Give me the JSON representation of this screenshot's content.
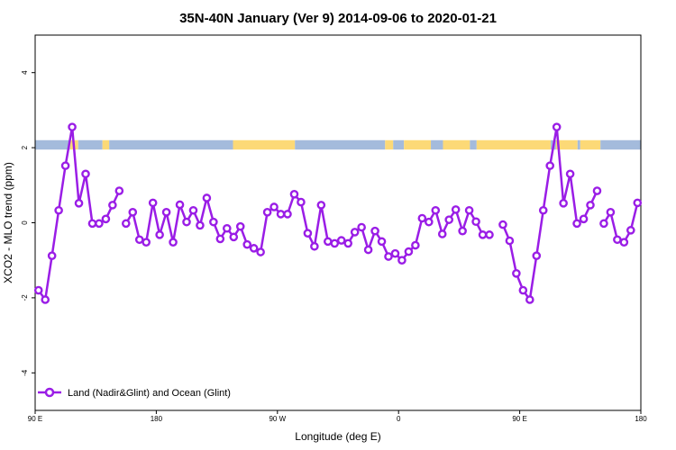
{
  "chart_data": {
    "type": "line",
    "title": "35N-40N January (Ver 9)   2014-09-06 to 2020-01-21",
    "xlabel": "Longitude (deg E)",
    "ylabel": "XCO2 - MLO trend (ppm)",
    "xlim": [
      90,
      540
    ],
    "ylim": [
      -5,
      5
    ],
    "x_ticks": [
      {
        "value": 90,
        "label": "90 E"
      },
      {
        "value": 180,
        "label": "180"
      },
      {
        "value": 270,
        "label": "90 W"
      },
      {
        "value": 360,
        "label": "0"
      },
      {
        "value": 450,
        "label": "90 E"
      },
      {
        "value": 540,
        "label": "180"
      }
    ],
    "y_ticks": [
      {
        "value": -4,
        "label": "-4"
      },
      {
        "value": -2,
        "label": "-2"
      },
      {
        "value": 0,
        "label": "0"
      },
      {
        "value": 2,
        "label": "2"
      },
      {
        "value": 4,
        "label": "4"
      }
    ],
    "grid": false,
    "legend_position": "bottom-left",
    "colors": {
      "series": "#9a1de6",
      "land": "#fcd977",
      "ocean": "#a4bbdc"
    },
    "series": [
      {
        "name": "Land (Nadir&Glint) and Ocean (Glint)",
        "segments": [
          [
            [
              92.5,
              -1.8
            ],
            [
              97.5,
              -2.05
            ],
            [
              102.5,
              -0.88
            ],
            [
              107.5,
              0.33
            ],
            [
              112.5,
              1.52
            ],
            [
              117.5,
              2.55
            ],
            [
              122.5,
              0.52
            ],
            [
              127.5,
              1.3
            ],
            [
              132.5,
              -0.02
            ],
            [
              137.5,
              -0.02
            ],
            [
              142.5,
              0.1
            ],
            [
              147.5,
              0.47
            ],
            [
              152.5,
              0.85
            ]
          ],
          [
            [
              157.5,
              -0.02
            ],
            [
              162.5,
              0.28
            ],
            [
              167.5,
              -0.45
            ],
            [
              172.5,
              -0.52
            ],
            [
              177.5,
              0.53
            ],
            [
              182.5,
              -0.32
            ],
            [
              187.5,
              0.28
            ],
            [
              192.5,
              -0.52
            ],
            [
              197.5,
              0.48
            ],
            [
              202.5,
              0.02
            ],
            [
              207.5,
              0.33
            ],
            [
              212.5,
              -0.07
            ],
            [
              217.5,
              0.66
            ],
            [
              222.5,
              0.02
            ],
            [
              227.5,
              -0.43
            ],
            [
              232.5,
              -0.15
            ],
            [
              237.5,
              -0.38
            ],
            [
              242.5,
              -0.1
            ],
            [
              247.5,
              -0.58
            ],
            [
              252.5,
              -0.68
            ],
            [
              257.5,
              -0.78
            ],
            [
              262.5,
              0.28
            ],
            [
              267.5,
              0.42
            ],
            [
              272.5,
              0.23
            ],
            [
              277.5,
              0.23
            ],
            [
              282.5,
              0.76
            ],
            [
              287.5,
              0.55
            ],
            [
              292.5,
              -0.28
            ],
            [
              297.5,
              -0.63
            ],
            [
              302.5,
              0.47
            ],
            [
              307.5,
              -0.5
            ],
            [
              312.5,
              -0.55
            ],
            [
              317.5,
              -0.47
            ],
            [
              322.5,
              -0.55
            ],
            [
              327.5,
              -0.25
            ],
            [
              332.5,
              -0.12
            ],
            [
              337.5,
              -0.72
            ],
            [
              342.5,
              -0.22
            ],
            [
              347.5,
              -0.5
            ],
            [
              352.5,
              -0.9
            ],
            [
              357.5,
              -0.82
            ],
            [
              362.5,
              -1.0
            ],
            [
              367.5,
              -0.77
            ],
            [
              372.5,
              -0.6
            ],
            [
              377.5,
              0.12
            ],
            [
              382.5,
              0.02
            ],
            [
              387.5,
              0.33
            ],
            [
              392.5,
              -0.3
            ],
            [
              397.5,
              0.08
            ],
            [
              402.5,
              0.35
            ],
            [
              407.5,
              -0.22
            ],
            [
              412.5,
              0.33
            ],
            [
              417.5,
              0.03
            ],
            [
              422.5,
              -0.32
            ],
            [
              427.5,
              -0.32
            ]
          ],
          [
            [
              437.5,
              -0.05
            ],
            [
              442.5,
              -0.48
            ],
            [
              447.5,
              -1.35
            ],
            [
              452.5,
              -1.8
            ],
            [
              457.5,
              -2.05
            ],
            [
              462.5,
              -0.88
            ],
            [
              467.5,
              0.33
            ],
            [
              472.5,
              1.52
            ],
            [
              477.5,
              2.55
            ],
            [
              482.5,
              0.52
            ],
            [
              487.5,
              1.3
            ],
            [
              492.5,
              -0.02
            ],
            [
              497.5,
              0.1
            ],
            [
              502.5,
              0.47
            ],
            [
              507.5,
              0.85
            ]
          ],
          [
            [
              512.5,
              -0.02
            ],
            [
              517.5,
              0.28
            ],
            [
              522.5,
              -0.45
            ],
            [
              527.5,
              -0.52
            ],
            [
              532.5,
              -0.2
            ],
            [
              537.5,
              0.53
            ],
            [
              540,
              0.53
            ]
          ]
        ]
      }
    ],
    "surface_band": {
      "y_range": [
        1.95,
        2.2
      ],
      "segments": [
        [
          90,
          116,
          "ocean"
        ],
        [
          116,
          122,
          "land"
        ],
        [
          122,
          140,
          "ocean"
        ],
        [
          140,
          145,
          "land"
        ],
        [
          145,
          237,
          "ocean"
        ],
        [
          237,
          283,
          "land"
        ],
        [
          283,
          350,
          "ocean"
        ],
        [
          350,
          356,
          "land"
        ],
        [
          356,
          364,
          "ocean"
        ],
        [
          364,
          384,
          "land"
        ],
        [
          384,
          393,
          "ocean"
        ],
        [
          393,
          413,
          "land"
        ],
        [
          413,
          418,
          "ocean"
        ],
        [
          418,
          473,
          "land"
        ],
        [
          473,
          477,
          "ocean"
        ],
        [
          477,
          493,
          "land"
        ],
        [
          493,
          495,
          "ocean"
        ],
        [
          495,
          510,
          "land"
        ],
        [
          510,
          540,
          "ocean"
        ]
      ]
    }
  }
}
